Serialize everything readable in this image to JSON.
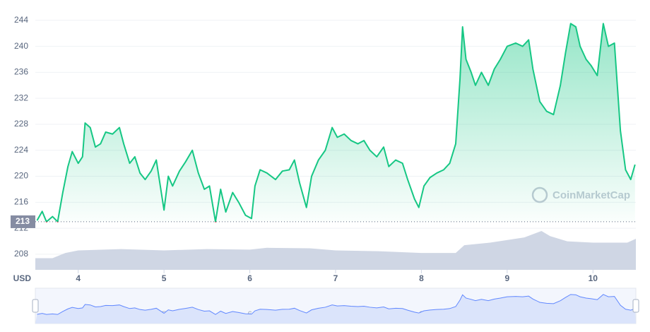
{
  "chart_data": {
    "type": "line",
    "currency": "USD",
    "watermark": "CoinMarketCap",
    "baseline": 213,
    "xlim": [
      3.5,
      10.5
    ],
    "xticks": [
      4,
      5,
      6,
      7,
      8,
      9,
      10
    ],
    "ylim": [
      205.6,
      245.5
    ],
    "yticks": [
      208,
      212,
      216,
      220,
      224,
      228,
      232,
      236,
      240,
      244
    ],
    "y2lim": [
      0,
      100
    ],
    "grid": true,
    "x": [
      3.52,
      3.58,
      3.63,
      3.7,
      3.76,
      3.82,
      3.88,
      3.93,
      4.0,
      4.05,
      4.08,
      4.14,
      4.2,
      4.26,
      4.32,
      4.4,
      4.48,
      4.53,
      4.6,
      4.66,
      4.72,
      4.78,
      4.85,
      4.91,
      5.0,
      5.05,
      5.1,
      5.18,
      5.25,
      5.33,
      5.4,
      5.47,
      5.53,
      5.6,
      5.66,
      5.72,
      5.8,
      5.87,
      5.95,
      6.02,
      6.06,
      6.12,
      6.2,
      6.3,
      6.38,
      6.46,
      6.52,
      6.58,
      6.66,
      6.72,
      6.8,
      6.88,
      6.96,
      7.02,
      7.1,
      7.18,
      7.26,
      7.33,
      7.4,
      7.48,
      7.56,
      7.62,
      7.7,
      7.78,
      7.84,
      7.92,
      7.97,
      8.03,
      8.1,
      8.18,
      8.26,
      8.33,
      8.4,
      8.45,
      8.48,
      8.52,
      8.58,
      8.63,
      8.7,
      8.78,
      8.85,
      8.92,
      9.0,
      9.1,
      9.18,
      9.25,
      9.3,
      9.38,
      9.46,
      9.54,
      9.62,
      9.68,
      9.74,
      9.8,
      9.85,
      9.92,
      9.98,
      10.05,
      10.12,
      10.18,
      10.25,
      10.32,
      10.38,
      10.44,
      10.49
    ],
    "series": [
      {
        "color": "#16c784",
        "below_color": "#ea3943",
        "values": [
          213.2,
          214.6,
          213.0,
          213.8,
          213.0,
          217.5,
          221.5,
          223.8,
          222.0,
          223.0,
          228.2,
          227.5,
          224.5,
          225.0,
          226.8,
          226.5,
          227.5,
          225.0,
          222.0,
          223.0,
          220.5,
          219.5,
          220.8,
          222.5,
          214.8,
          220.0,
          218.5,
          220.8,
          222.2,
          224.0,
          220.5,
          218.0,
          218.5,
          213.0,
          218.0,
          214.5,
          217.5,
          216.0,
          214.0,
          213.5,
          218.5,
          221.0,
          220.5,
          219.5,
          220.8,
          221.0,
          222.5,
          219.0,
          215.2,
          220.0,
          222.5,
          224.0,
          227.5,
          226.0,
          226.5,
          225.5,
          225.0,
          225.5,
          224.0,
          223.0,
          224.5,
          221.5,
          222.5,
          222.0,
          219.5,
          216.5,
          215.2,
          218.5,
          219.8,
          220.5,
          221.0,
          222.0,
          225.0,
          235.0,
          243.0,
          238.0,
          236.0,
          234.0,
          236.0,
          234.0,
          236.5,
          238.0,
          240.0,
          240.5,
          240.0,
          241.0,
          236.5,
          231.5,
          230.0,
          229.5,
          234.0,
          239.0,
          243.5,
          243.0,
          240.0,
          238.0,
          237.0,
          235.5,
          243.5,
          240.0,
          240.5,
          227.0,
          221.0,
          219.5,
          221.8
        ]
      }
    ],
    "volume": {
      "color": "#cfd6e4",
      "axis": "y2",
      "x": [
        3.5,
        3.7,
        3.85,
        4.0,
        4.5,
        5.0,
        5.5,
        6.0,
        6.2,
        6.7,
        7.0,
        7.5,
        8.0,
        8.4,
        8.5,
        8.8,
        9.2,
        9.4,
        9.5,
        9.7,
        10.0,
        10.4,
        10.5
      ],
      "values": [
        4.5,
        4.5,
        6.5,
        7.5,
        8,
        7.5,
        8,
        7.8,
        8.5,
        8.3,
        7.5,
        7.2,
        6.5,
        6.5,
        9.5,
        10.5,
        12.5,
        15,
        13,
        11,
        10.5,
        10.5,
        12
      ]
    }
  }
}
